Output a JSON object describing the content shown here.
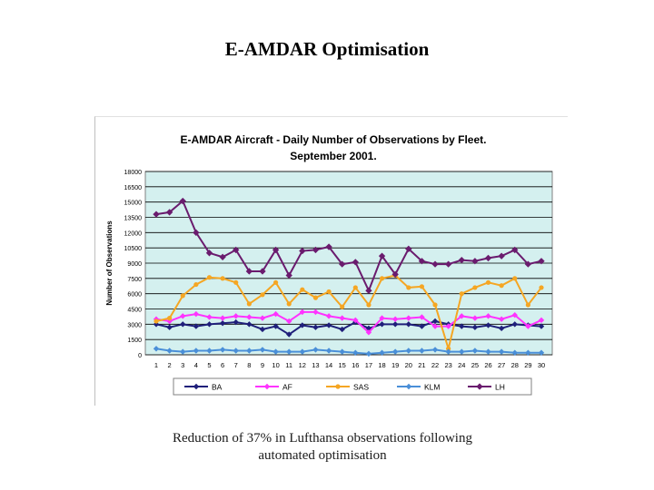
{
  "slide": {
    "title": "E-AMDAR Optimisation",
    "caption_line1": "Reduction of 37% in Lufthansa observations following",
    "caption_line2": "automated optimisation"
  },
  "chart_data": {
    "type": "line",
    "title_line1": "E-AMDAR Aircraft - Daily Number of Observations by Fleet.",
    "title_line2": "September 2001.",
    "ylabel": "Number of Observations",
    "xlabel": "",
    "ylim": [
      0,
      18000
    ],
    "yticks": [
      0,
      1500,
      3000,
      4500,
      6000,
      7500,
      9000,
      10500,
      12000,
      13500,
      15000,
      16500,
      18000
    ],
    "x": [
      1,
      2,
      3,
      4,
      5,
      6,
      7,
      8,
      9,
      10,
      11,
      12,
      13,
      14,
      15,
      16,
      17,
      18,
      19,
      20,
      21,
      22,
      23,
      24,
      25,
      26,
      27,
      28,
      29,
      30
    ],
    "grid": true,
    "legend_position": "bottom",
    "colors": {
      "plot_bg": "#d4f0ef",
      "grid": "#000000",
      "BA": "#1f1f7a",
      "AF": "#ff33ff",
      "SAS": "#f5a623",
      "KLM": "#4a8fd8",
      "LH": "#6a1b6e"
    },
    "series": [
      {
        "name": "BA",
        "values": [
          3000,
          2700,
          3000,
          2800,
          3000,
          3100,
          3200,
          3000,
          2500,
          2800,
          2000,
          2900,
          2700,
          2900,
          2500,
          3200,
          2600,
          3000,
          3000,
          3000,
          2800,
          3300,
          3000,
          2800,
          2700,
          2900,
          2600,
          3000,
          2900,
          2800
        ]
      },
      {
        "name": "AF",
        "values": [
          3500,
          3300,
          3800,
          4000,
          3700,
          3600,
          3800,
          3700,
          3600,
          4000,
          3300,
          4200,
          4200,
          3800,
          3600,
          3400,
          2200,
          3600,
          3500,
          3600,
          3700,
          2800,
          2800,
          3800,
          3600,
          3800,
          3500,
          3900,
          2800,
          3400
        ]
      },
      {
        "name": "SAS",
        "values": [
          3300,
          3600,
          5800,
          6900,
          7600,
          7500,
          7100,
          5000,
          5900,
          7100,
          5000,
          6400,
          5600,
          6200,
          4700,
          6600,
          4900,
          7500,
          7800,
          6600,
          6700,
          4900,
          600,
          6000,
          6600,
          7100,
          6800,
          7500,
          4900,
          6600
        ]
      },
      {
        "name": "KLM",
        "values": [
          600,
          400,
          300,
          400,
          400,
          500,
          400,
          400,
          500,
          300,
          300,
          300,
          500,
          400,
          300,
          200,
          100,
          200,
          300,
          400,
          400,
          500,
          300,
          300,
          400,
          300,
          300,
          200,
          200,
          200
        ]
      },
      {
        "name": "LH",
        "values": [
          13800,
          14000,
          15100,
          12000,
          10000,
          9600,
          10300,
          8200,
          8200,
          10300,
          7800,
          10200,
          10300,
          10600,
          8900,
          9100,
          6300,
          9700,
          7900,
          10400,
          9200,
          8900,
          8900,
          9300,
          9200,
          9500,
          9700,
          10300,
          8900,
          9200
        ]
      }
    ]
  }
}
